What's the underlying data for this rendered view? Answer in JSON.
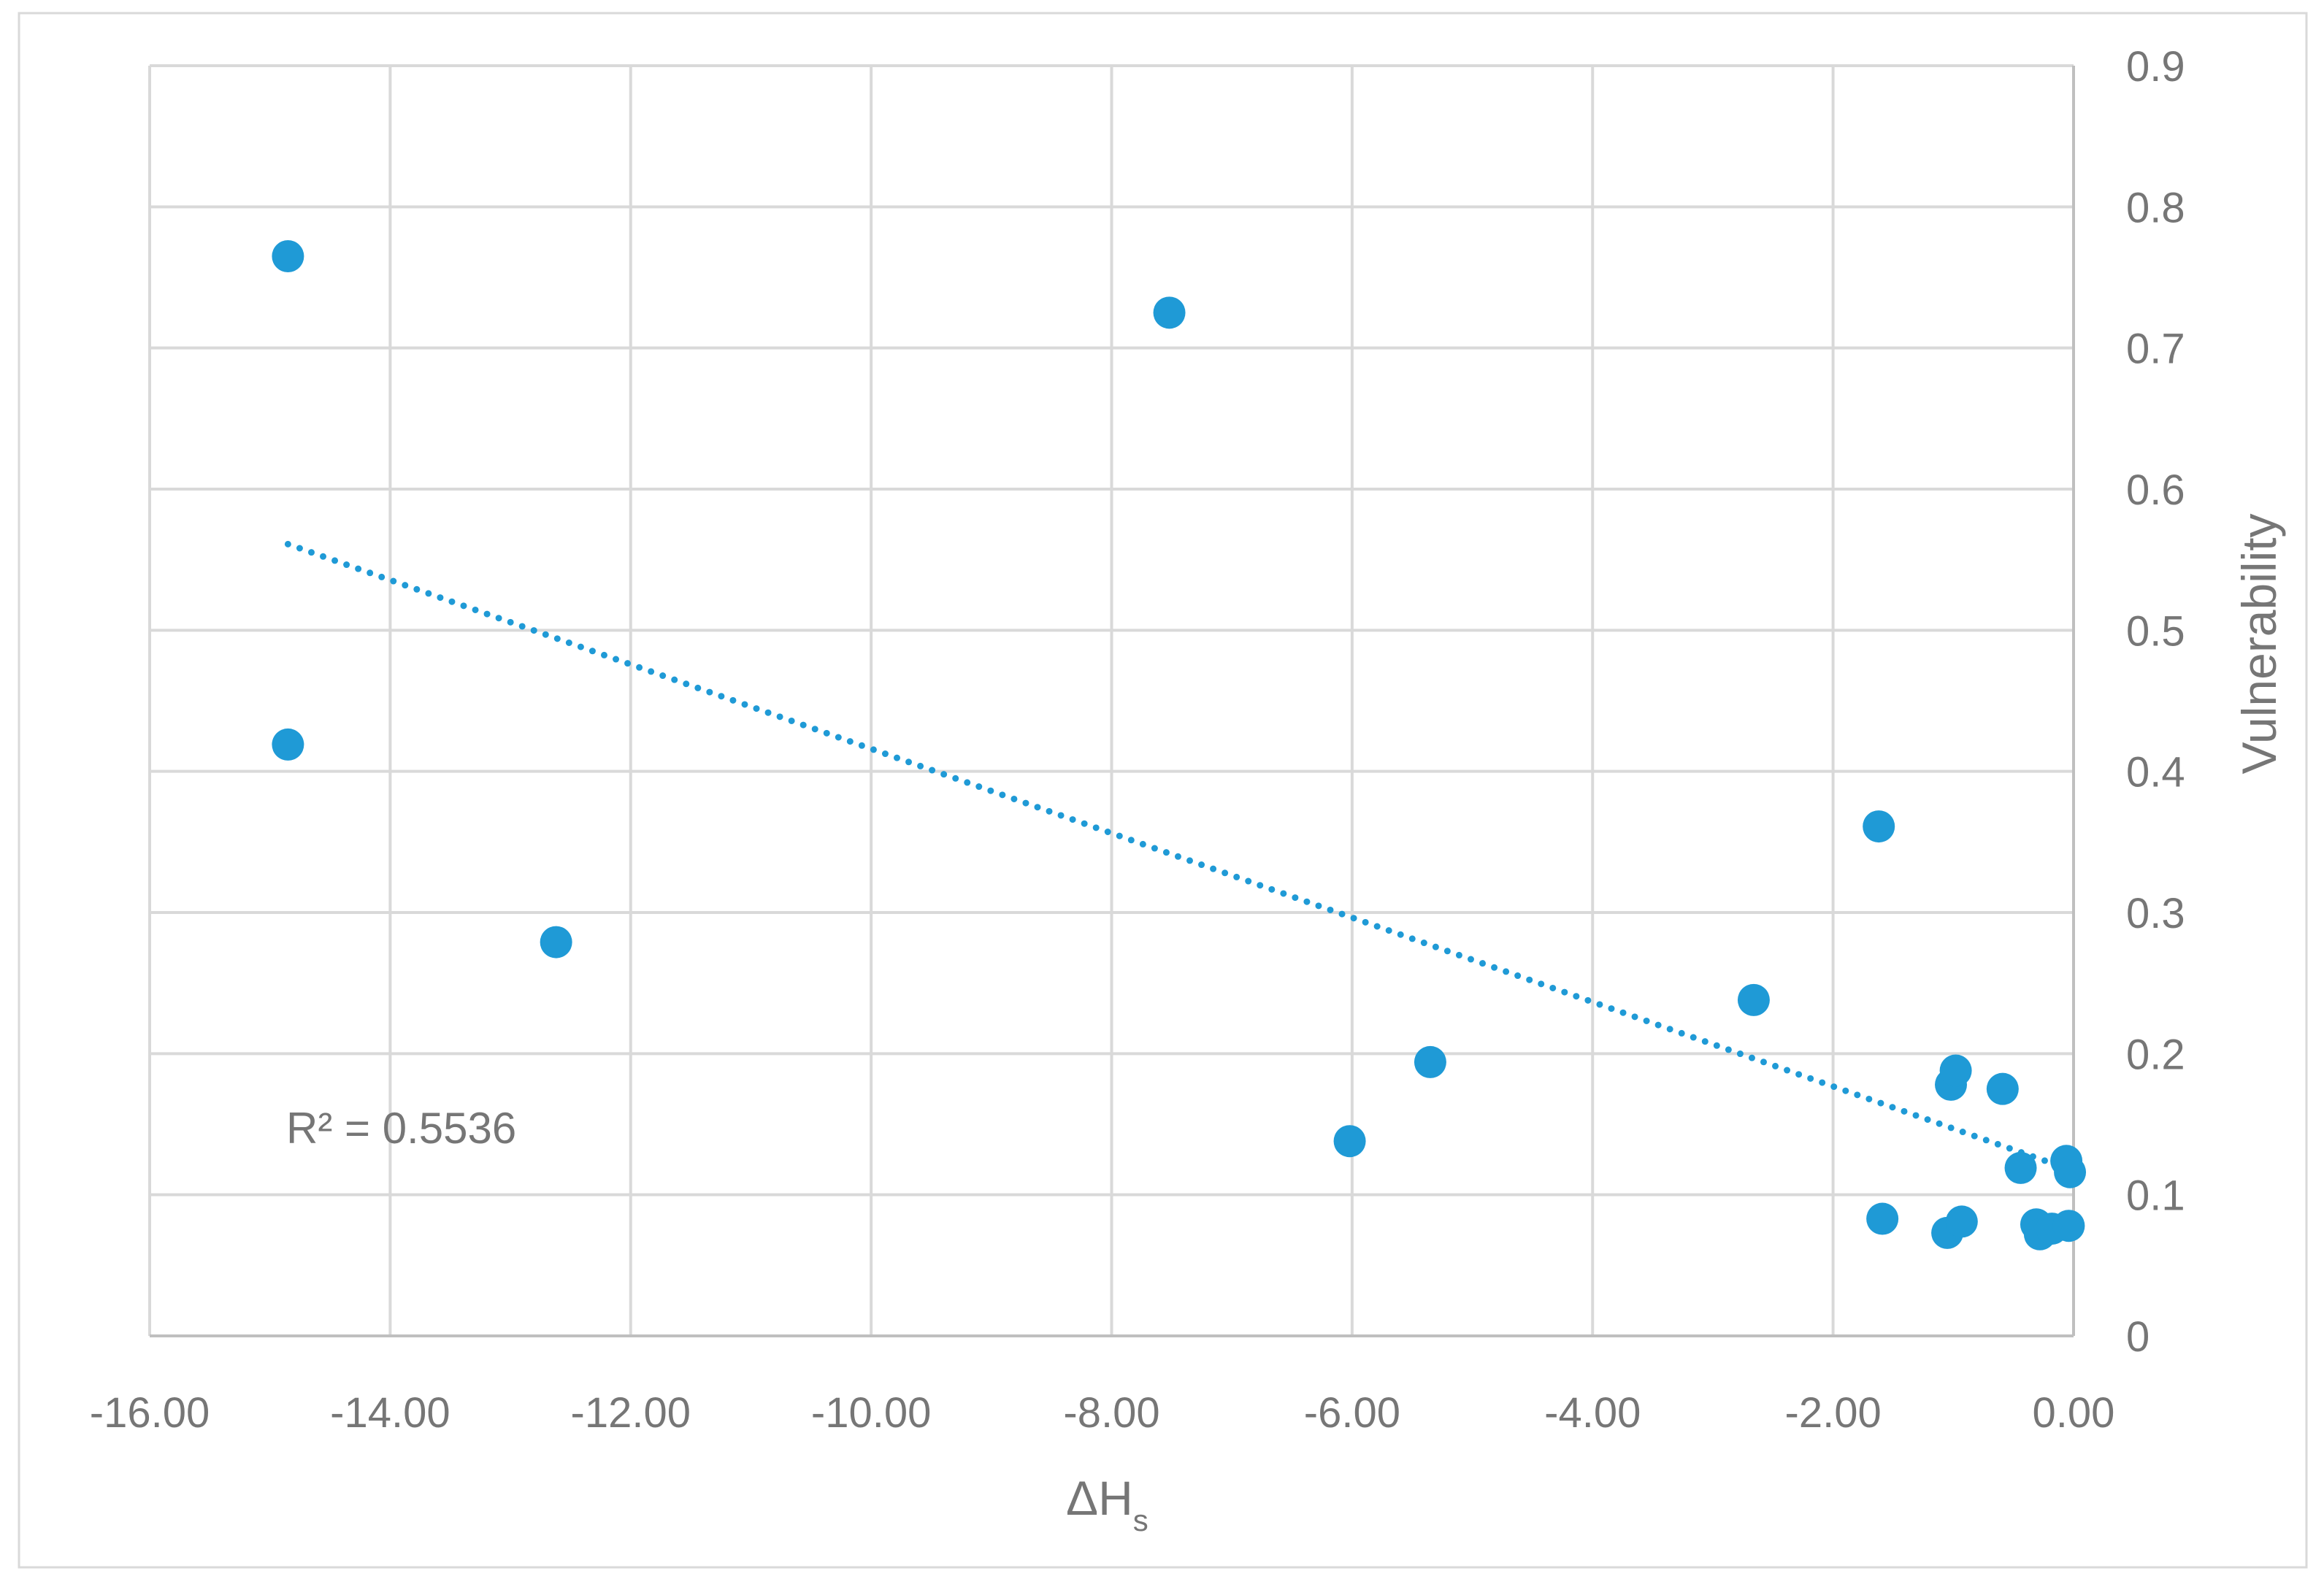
{
  "chart_data": {
    "type": "scatter",
    "title": "",
    "xlabel": "ΔH",
    "xlabel_subscript": "s",
    "ylabel": "Vulnerability",
    "xlim": [
      -16,
      0
    ],
    "ylim": [
      0,
      0.9
    ],
    "x_ticks": [
      -16,
      -14,
      -12,
      -10,
      -8,
      -6,
      -4,
      -2,
      0
    ],
    "x_tick_labels": [
      "-16.00",
      "-14.00",
      "-12.00",
      "-10.00",
      "-8.00",
      "-6.00",
      "-4.00",
      "-2.00",
      "0.00"
    ],
    "y_ticks": [
      0,
      0.1,
      0.2,
      0.3,
      0.4,
      0.5,
      0.6,
      0.7,
      0.8,
      0.9
    ],
    "y_tick_labels": [
      "0",
      "0.1",
      "0.2",
      "0.3",
      "0.4",
      "0.5",
      "0.6",
      "0.7",
      "0.8",
      "0.9"
    ],
    "y_axis_side": "right",
    "grid": true,
    "legend": "none",
    "marker_color": "#1f9ad6",
    "series": [
      {
        "points": [
          {
            "x": -14.85,
            "y": 0.765
          },
          {
            "x": -14.85,
            "y": 0.419
          },
          {
            "x": -12.62,
            "y": 0.279
          },
          {
            "x": -7.52,
            "y": 0.725
          },
          {
            "x": -6.02,
            "y": 0.138
          },
          {
            "x": -5.35,
            "y": 0.194
          },
          {
            "x": -2.66,
            "y": 0.238
          },
          {
            "x": -1.62,
            "y": 0.361
          },
          {
            "x": -1.59,
            "y": 0.083
          },
          {
            "x": -1.05,
            "y": 0.073
          },
          {
            "x": -1.02,
            "y": 0.178
          },
          {
            "x": -0.98,
            "y": 0.188
          },
          {
            "x": -0.93,
            "y": 0.081
          },
          {
            "x": -0.59,
            "y": 0.175
          },
          {
            "x": -0.44,
            "y": 0.119
          },
          {
            "x": -0.31,
            "y": 0.079
          },
          {
            "x": -0.28,
            "y": 0.072
          },
          {
            "x": -0.18,
            "y": 0.076
          },
          {
            "x": -0.06,
            "y": 0.124
          },
          {
            "x": -0.04,
            "y": 0.078
          },
          {
            "x": -0.03,
            "y": 0.116
          }
        ]
      }
    ],
    "trendline": {
      "type": "linear",
      "style": "dotted",
      "x_range": [
        -14.85,
        0
      ],
      "slope": -0.0299,
      "intercept": 0.117,
      "color": "#1f9ad6"
    },
    "annotation": {
      "label": "R² = 0.5536"
    }
  }
}
